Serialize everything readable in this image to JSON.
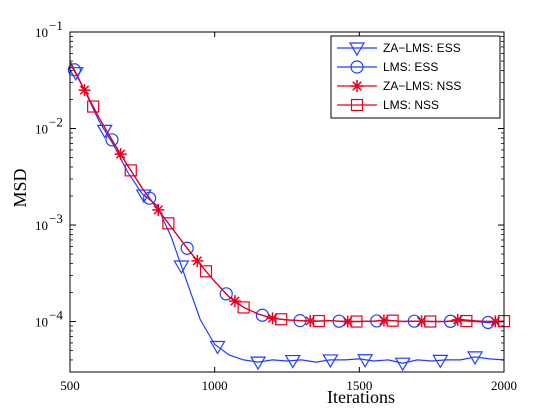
{
  "chart_data": {
    "type": "line",
    "xlabel": "Iterations",
    "ylabel": "MSD",
    "xlim": [
      500,
      2000
    ],
    "ylim": [
      3e-05,
      0.1
    ],
    "yscale": "log",
    "xticks": [
      500,
      1000,
      1500,
      2000
    ],
    "yticks": [
      {
        "value": 0.1,
        "base": "10",
        "exp": "−1"
      },
      {
        "value": 0.01,
        "base": "10",
        "exp": "−2"
      },
      {
        "value": 0.001,
        "base": "10",
        "exp": "−3"
      },
      {
        "value": 0.0001,
        "base": "10",
        "exp": "−4"
      }
    ],
    "grid": false,
    "legend_position": "top-right",
    "series": [
      {
        "name": "ZA−LMS: ESS",
        "color": "#1f3fff",
        "marker": "triangle-down",
        "x": [
          500,
          550,
          600,
          650,
          700,
          750,
          800,
          850,
          900,
          950,
          1000,
          1050,
          1100,
          1150,
          1200,
          1250,
          1300,
          1350,
          1400,
          1450,
          1500,
          1550,
          1600,
          1650,
          1700,
          1750,
          1800,
          1850,
          1900,
          1950,
          2000
        ],
        "y": [
          0.05,
          0.025,
          0.012,
          0.0068,
          0.0035,
          0.0021,
          0.0016,
          0.00075,
          0.00028,
          0.000105,
          5.8e-05,
          4.5e-05,
          4e-05,
          3.8e-05,
          4e-05,
          3.9e-05,
          4e-05,
          3.8e-05,
          4e-05,
          4e-05,
          4.1e-05,
          3.9e-05,
          4e-05,
          3.7e-05,
          4e-05,
          3.9e-05,
          4e-05,
          4e-05,
          4.3e-05,
          4.1e-05,
          4e-05
        ],
        "marker_x": [
          520,
          620,
          755,
          885,
          1010,
          1150,
          1270,
          1400,
          1520,
          1650,
          1780,
          1900
        ]
      },
      {
        "name": "LMS: ESS",
        "color": "#1f3fff",
        "marker": "circle",
        "x": [
          500,
          550,
          600,
          650,
          700,
          750,
          800,
          850,
          900,
          950,
          1000,
          1050,
          1100,
          1150,
          1200,
          1250,
          1300,
          1350,
          1400,
          1450,
          1500,
          1550,
          1600,
          1650,
          1700,
          1750,
          1800,
          1850,
          1900,
          1950,
          2000
        ],
        "y": [
          0.05,
          0.025,
          0.013,
          0.0072,
          0.0041,
          0.0024,
          0.0015,
          0.00095,
          0.0006,
          0.00039,
          0.00026,
          0.00018,
          0.00014,
          0.00012,
          0.000108,
          0.000104,
          0.000102,
          0.000101,
          0.000102,
          0.0001,
          0.0001,
          0.000101,
          0.000103,
          0.0001,
          0.000101,
          0.0001,
          0.0001,
          0.000102,
          0.0001,
          9.75e-05,
          0.0001
        ],
        "marker_x": [
          515,
          645,
          775,
          905,
          1040,
          1165,
          1295,
          1430,
          1560,
          1690,
          1815,
          1945
        ]
      },
      {
        "name": "ZA−LMS: NSS",
        "color": "#e8001c",
        "marker": "star",
        "x": [
          500,
          550,
          600,
          650,
          700,
          750,
          800,
          850,
          900,
          950,
          1000,
          1050,
          1100,
          1150,
          1200,
          1250,
          1300,
          1350,
          1400,
          1450,
          1500,
          1550,
          1600,
          1650,
          1700,
          1750,
          1800,
          1850,
          1900,
          1950,
          2000
        ],
        "y": [
          0.048,
          0.025,
          0.013,
          0.0072,
          0.0041,
          0.0024,
          0.0015,
          0.00095,
          0.0006,
          0.00039,
          0.00026,
          0.00018,
          0.00014,
          0.00012,
          0.000108,
          0.000104,
          0.000102,
          0.000101,
          0.000102,
          0.0001,
          0.0001,
          0.000101,
          0.000103,
          0.0001,
          0.000101,
          0.0001,
          0.0001,
          0.000105,
          0.000102,
          0.0001,
          0.000101
        ],
        "marker_x": [
          550,
          675,
          805,
          940,
          1070,
          1200,
          1330,
          1460,
          1585,
          1715,
          1840,
          1970
        ]
      },
      {
        "name": "LMS: NSS",
        "color": "#e8001c",
        "marker": "square",
        "x": [
          500,
          550,
          600,
          650,
          700,
          750,
          800,
          850,
          900,
          950,
          1000,
          1050,
          1100,
          1150,
          1200,
          1250,
          1300,
          1350,
          1400,
          1450,
          1500,
          1550,
          1600,
          1650,
          1700,
          1750,
          1800,
          1850,
          1900,
          1950,
          2000
        ],
        "y": [
          0.048,
          0.025,
          0.013,
          0.0072,
          0.0041,
          0.0024,
          0.0015,
          0.00095,
          0.0006,
          0.00039,
          0.00026,
          0.00018,
          0.00014,
          0.00012,
          0.000108,
          0.000104,
          0.000102,
          0.000101,
          0.000102,
          0.0001,
          0.0001,
          0.000101,
          0.000103,
          0.0001,
          0.000101,
          0.0001,
          0.0001,
          0.000102,
          0.0001,
          0.0001,
          0.000101
        ],
        "marker_x": [
          580,
          710,
          840,
          970,
          1100,
          1230,
          1360,
          1490,
          1615,
          1745,
          1870,
          2000
        ]
      }
    ]
  }
}
